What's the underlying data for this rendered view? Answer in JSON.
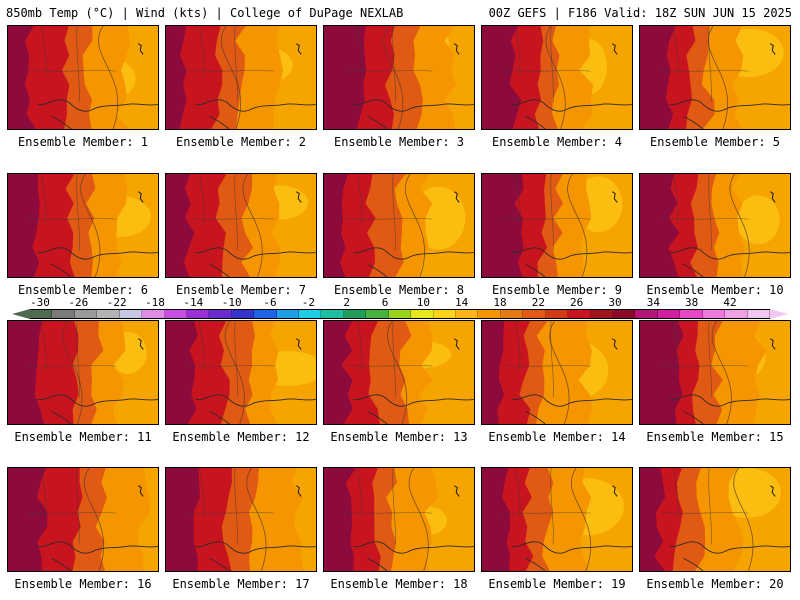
{
  "header": {
    "left_title": "850mb Temp (°C) | Wind (kts) | College of DuPage NEXLAB",
    "right_title": "00Z GEFS | F186 Valid: 18Z SUN JUN 15 2025"
  },
  "panels": [
    {
      "label": "Ensemble Member: 1"
    },
    {
      "label": "Ensemble Member: 2"
    },
    {
      "label": "Ensemble Member: 3"
    },
    {
      "label": "Ensemble Member: 4"
    },
    {
      "label": "Ensemble Member: 5"
    },
    {
      "label": "Ensemble Member: 6"
    },
    {
      "label": "Ensemble Member: 7"
    },
    {
      "label": "Ensemble Member: 8"
    },
    {
      "label": "Ensemble Member: 9"
    },
    {
      "label": "Ensemble Member: 10"
    },
    {
      "label": "Ensemble Member: 11"
    },
    {
      "label": "Ensemble Member: 12"
    },
    {
      "label": "Ensemble Member: 13"
    },
    {
      "label": "Ensemble Member: 14"
    },
    {
      "label": "Ensemble Member: 15"
    },
    {
      "label": "Ensemble Member: 16"
    },
    {
      "label": "Ensemble Member: 17"
    },
    {
      "label": "Ensemble Member: 18"
    },
    {
      "label": "Ensemble Member: 19"
    },
    {
      "label": "Ensemble Member: 20"
    }
  ],
  "colorbar": {
    "labels": [
      "-30",
      "-26",
      "-22",
      "-18",
      "-14",
      "-10",
      "-6",
      "-2",
      "2",
      "6",
      "10",
      "14",
      "18",
      "22",
      "26",
      "30",
      "34",
      "38",
      "42"
    ],
    "colors": [
      "#4f6a4f",
      "#7a7a7a",
      "#9a9a9a",
      "#b4b4b4",
      "#c8c8e6",
      "#e08ce6",
      "#c84ee6",
      "#9b30d8",
      "#6a2ad0",
      "#3434c8",
      "#1e64e6",
      "#1ea0e6",
      "#1ecce6",
      "#1ebe9e",
      "#1e9e5a",
      "#46b43c",
      "#9ad21e",
      "#e6e61e",
      "#ffd21e",
      "#ffb41e",
      "#f59600",
      "#e67814",
      "#e05a14",
      "#d23c14",
      "#c8141e",
      "#a0141e",
      "#8c0a28",
      "#b4147a",
      "#d21ea0",
      "#e646c8",
      "#f078dc",
      "#f2a0e6",
      "#f2c6f2"
    ]
  },
  "map_colors": {
    "hot": "#8c0a3c",
    "very_warm": "#c8141e",
    "warm": "#e05a14",
    "mid": "#f59600",
    "base": "#f6a500",
    "cool": "#ffd21e"
  }
}
